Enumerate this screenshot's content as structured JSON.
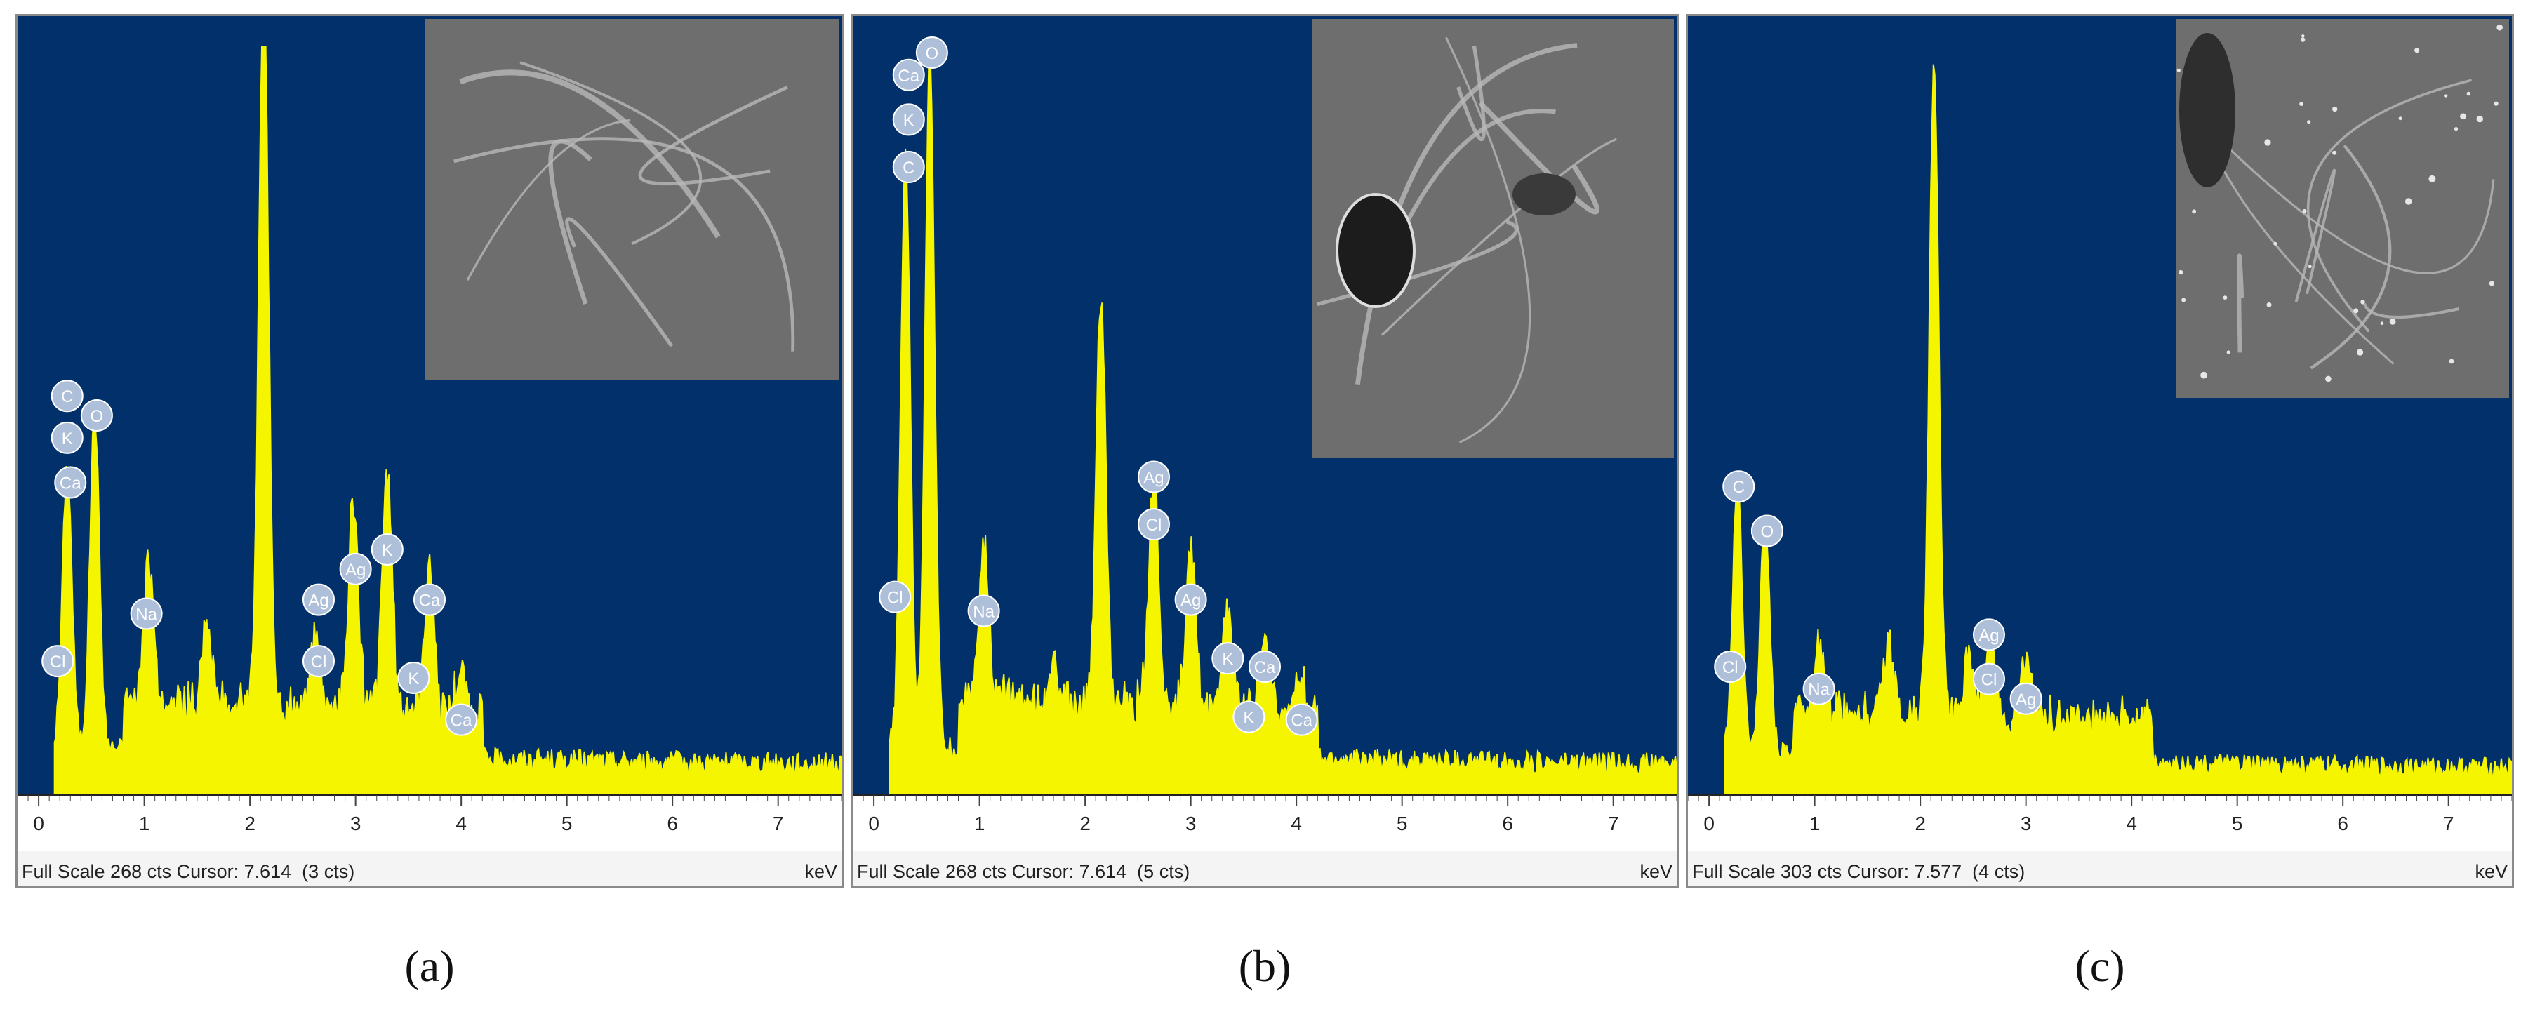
{
  "colors": {
    "background": "#02306b",
    "spectrum": "#f5f500",
    "label_fill": "#aebfd9",
    "label_text": "#ffffff"
  },
  "panels": [
    {
      "caption": "(a)",
      "status": "Full Scale 268 cts Cursor: 7.614  (3 cts)",
      "unit": "keV",
      "inset": "grey SEM micrograph, smooth surface with thin ridges"
    },
    {
      "caption": "(b)",
      "status": "Full Scale 268 cts Cursor: 7.614  (5 cts)",
      "unit": "keV",
      "inset": "grey SEM micrograph, porous surface with bright fibrous edges"
    },
    {
      "caption": "(c)",
      "status": "Full Scale 303 cts Cursor: 7.577  (4 cts)",
      "unit": "keV",
      "inset": "grey SEM micrograph, rough surface with bright specks"
    }
  ],
  "chart_data": [
    {
      "type": "area",
      "xlim": [
        -0.2,
        7.6
      ],
      "ylim": [
        0,
        268
      ],
      "xticks": [
        "0",
        "1",
        "2",
        "3",
        "4",
        "5",
        "6",
        "7"
      ],
      "peaks": [
        {
          "x": 0.27,
          "y": 100
        },
        {
          "x": 0.53,
          "y": 120
        },
        {
          "x": 1.04,
          "y": 50
        },
        {
          "x": 1.6,
          "y": 28
        },
        {
          "x": 2.13,
          "y": 262
        },
        {
          "x": 2.62,
          "y": 25
        },
        {
          "x": 2.98,
          "y": 75
        },
        {
          "x": 3.3,
          "y": 84
        },
        {
          "x": 3.7,
          "y": 50
        },
        {
          "x": 4.0,
          "y": 14
        }
      ],
      "labels": [
        {
          "text": "C",
          "x": 0.27,
          "y": 143
        },
        {
          "text": "K",
          "x": 0.27,
          "y": 128
        },
        {
          "text": "Ca",
          "x": 0.3,
          "y": 112
        },
        {
          "text": "Cl",
          "x": 0.18,
          "y": 48
        },
        {
          "text": "O",
          "x": 0.55,
          "y": 136
        },
        {
          "text": "Na",
          "x": 1.02,
          "y": 65
        },
        {
          "text": "Ag",
          "x": 2.65,
          "y": 70
        },
        {
          "text": "Cl",
          "x": 2.65,
          "y": 48
        },
        {
          "text": "Ag",
          "x": 3.0,
          "y": 81
        },
        {
          "text": "K",
          "x": 3.3,
          "y": 88
        },
        {
          "text": "Ca",
          "x": 3.7,
          "y": 70
        },
        {
          "text": "K",
          "x": 3.55,
          "y": 42
        },
        {
          "text": "Ca",
          "x": 4.0,
          "y": 27
        }
      ]
    },
    {
      "type": "area",
      "xlim": [
        -0.2,
        7.6
      ],
      "ylim": [
        0,
        268
      ],
      "xticks": [
        "0",
        "1",
        "2",
        "3",
        "4",
        "5",
        "6",
        "7"
      ],
      "peaks": [
        {
          "x": 0.3,
          "y": 213
        },
        {
          "x": 0.53,
          "y": 250
        },
        {
          "x": 1.04,
          "y": 55
        },
        {
          "x": 1.7,
          "y": 12
        },
        {
          "x": 2.15,
          "y": 147
        },
        {
          "x": 2.65,
          "y": 85
        },
        {
          "x": 3.0,
          "y": 57
        },
        {
          "x": 3.35,
          "y": 35
        },
        {
          "x": 3.7,
          "y": 22
        },
        {
          "x": 4.05,
          "y": 10
        }
      ],
      "labels": [
        {
          "text": "Ca",
          "x": 0.33,
          "y": 258
        },
        {
          "text": "K",
          "x": 0.33,
          "y": 242
        },
        {
          "text": "C",
          "x": 0.33,
          "y": 225
        },
        {
          "text": "O",
          "x": 0.55,
          "y": 266
        },
        {
          "text": "Cl",
          "x": 0.2,
          "y": 71
        },
        {
          "text": "Na",
          "x": 1.04,
          "y": 66
        },
        {
          "text": "Ag",
          "x": 2.65,
          "y": 114
        },
        {
          "text": "Cl",
          "x": 2.65,
          "y": 97
        },
        {
          "text": "Ag",
          "x": 3.0,
          "y": 70
        },
        {
          "text": "K",
          "x": 3.35,
          "y": 49
        },
        {
          "text": "Ca",
          "x": 3.7,
          "y": 46
        },
        {
          "text": "K",
          "x": 3.55,
          "y": 28
        },
        {
          "text": "Ca",
          "x": 4.05,
          "y": 27
        }
      ]
    },
    {
      "type": "area",
      "xlim": [
        -0.2,
        7.6
      ],
      "ylim": [
        0,
        303
      ],
      "xticks": [
        "0",
        "1",
        "2",
        "3",
        "4",
        "5",
        "6",
        "7"
      ],
      "peaks": [
        {
          "x": 0.27,
          "y": 110
        },
        {
          "x": 0.53,
          "y": 95
        },
        {
          "x": 1.04,
          "y": 30
        },
        {
          "x": 1.7,
          "y": 30
        },
        {
          "x": 2.13,
          "y": 262
        },
        {
          "x": 2.46,
          "y": 25
        },
        {
          "x": 2.66,
          "y": 35
        },
        {
          "x": 3.0,
          "y": 27
        }
      ],
      "labels": [
        {
          "text": "C",
          "x": 0.28,
          "y": 125
        },
        {
          "text": "O",
          "x": 0.55,
          "y": 107
        },
        {
          "text": "Cl",
          "x": 0.2,
          "y": 52
        },
        {
          "text": "Na",
          "x": 1.04,
          "y": 43
        },
        {
          "text": "Ag",
          "x": 2.65,
          "y": 65
        },
        {
          "text": "Cl",
          "x": 2.65,
          "y": 47
        },
        {
          "text": "Ag",
          "x": 3.0,
          "y": 39
        }
      ]
    }
  ]
}
